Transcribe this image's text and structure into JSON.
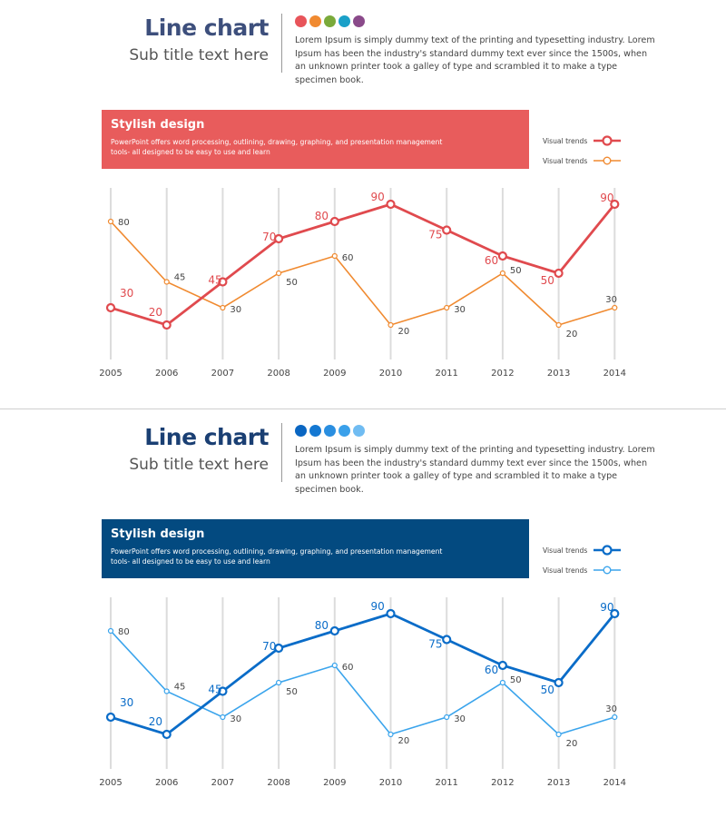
{
  "slides": [
    {
      "title": "Line chart",
      "subtitle": "Sub title text here",
      "paragraph": "Lorem Ipsum  is simply dummy  text of the printing and typesetting industry. Lorem Ipsum has been the industry's standard dummy  text ever since the 1500s, when an unknown printer took a galley of type and scrambled it to make a type specimen book.",
      "title_color": "#3d4f7c",
      "dot_colors": [
        "#e8545a",
        "#f08a30",
        "#7aaa3a",
        "#1aa0c8",
        "#8a4a8a"
      ],
      "banner": {
        "title": "Stylish design",
        "text": "PowerPoint offers word processing, outlining, drawing, graphing, and presentation management tools- all designed to be easy to use and learn",
        "color": "#e85c5c"
      },
      "legend": [
        {
          "label": "Visual trends",
          "color": "#e04a4e",
          "thick": true
        },
        {
          "label": "Visual trends",
          "color": "#f08a30",
          "thick": false
        }
      ]
    },
    {
      "title": "Line chart",
      "subtitle": "Sub title text here",
      "paragraph": "Lorem Ipsum  is simply dummy  text of the printing and typesetting industry. Lorem Ipsum has been the industry's standard dummy  text ever since the 1500s, when an unknown printer took a galley of type and scrambled it to make a type specimen book.",
      "title_color": "#1a3f73",
      "dot_colors": [
        "#0a66c2",
        "#1478d2",
        "#2a8ee0",
        "#3aa0ea",
        "#70bcf2"
      ],
      "banner": {
        "title": "Stylish design",
        "text": "PowerPoint offers word processing, outlining, drawing, graphing, and presentation management tools- all designed to be easy to use and learn",
        "color": "#034a80"
      },
      "legend": [
        {
          "label": "Visual trends",
          "color": "#0a6cc8",
          "thick": true
        },
        {
          "label": "Visual trends",
          "color": "#3aa4ec",
          "thick": false
        }
      ]
    }
  ],
  "chart_data": [
    {
      "type": "line",
      "title": "Line chart",
      "xlabel": "",
      "ylabel": "",
      "ylim": [
        0,
        90
      ],
      "grid": "vertical",
      "legend": "top-right",
      "x": [
        "2005",
        "2006",
        "2007",
        "2008",
        "2009",
        "2010",
        "2011",
        "2012",
        "2013",
        "2014"
      ],
      "series": [
        {
          "name": "Visual trends",
          "color": "#e04a4e",
          "values": [
            30,
            20,
            45,
            70,
            80,
            90,
            75,
            60,
            50,
            90
          ]
        },
        {
          "name": "Visual trends",
          "color": "#f08a30",
          "values": [
            80,
            45,
            30,
            50,
            60,
            20,
            30,
            50,
            20,
            30
          ]
        }
      ]
    },
    {
      "type": "line",
      "title": "Line chart",
      "xlabel": "",
      "ylabel": "",
      "ylim": [
        0,
        90
      ],
      "grid": "vertical",
      "legend": "top-right",
      "x": [
        "2005",
        "2006",
        "2007",
        "2008",
        "2009",
        "2010",
        "2011",
        "2012",
        "2013",
        "2014"
      ],
      "series": [
        {
          "name": "Visual trends",
          "color": "#0a6cc8",
          "values": [
            30,
            20,
            45,
            70,
            80,
            90,
            75,
            60,
            50,
            90
          ]
        },
        {
          "name": "Visual trends",
          "color": "#3aa4ec",
          "values": [
            80,
            45,
            30,
            50,
            60,
            20,
            30,
            50,
            20,
            30
          ]
        }
      ]
    }
  ]
}
